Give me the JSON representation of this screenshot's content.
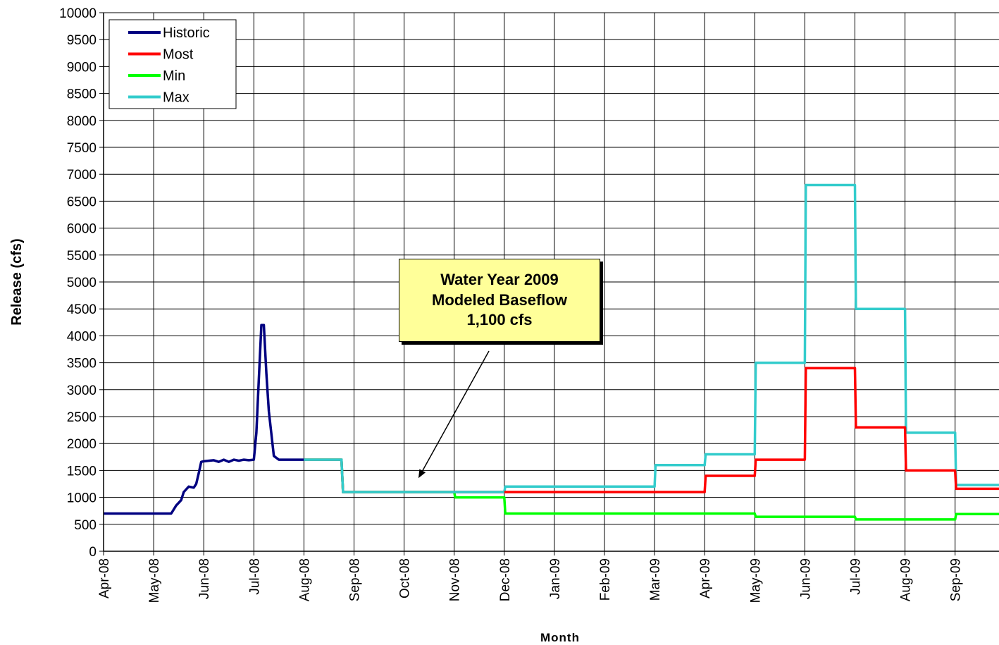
{
  "chart_data": {
    "type": "line",
    "xlabel": "Month",
    "ylabel": "Release (cfs)",
    "ylim": [
      0,
      10000
    ],
    "ytick_step": 500,
    "grid": true,
    "legend_position": "top-left",
    "x_ticks": [
      "Apr-08",
      "May-08",
      "Jun-08",
      "Jul-08",
      "Aug-08",
      "Sep-08",
      "Oct-08",
      "Nov-08",
      "Dec-08",
      "Jan-09",
      "Feb-09",
      "Mar-09",
      "Apr-09",
      "May-09",
      "Jun-09",
      "Jul-09",
      "Aug-09",
      "Sep-09"
    ],
    "x_unit": "month index (0 = Apr-08)",
    "series": [
      {
        "name": "Historic",
        "color": "#000080",
        "x": [
          0,
          1.35,
          1.45,
          1.55,
          1.6,
          1.7,
          1.8,
          1.85,
          1.9,
          1.95,
          2.0,
          2.1,
          2.2,
          2.3,
          2.4,
          2.5,
          2.6,
          2.7,
          2.8,
          2.9,
          3.0,
          3.05,
          3.1,
          3.15,
          3.2,
          3.25,
          3.3,
          3.4,
          3.5,
          3.6,
          3.7,
          3.8,
          4.0
        ],
        "y": [
          700,
          700,
          850,
          950,
          1100,
          1200,
          1180,
          1250,
          1450,
          1660,
          1670,
          1680,
          1690,
          1660,
          1700,
          1660,
          1700,
          1680,
          1700,
          1690,
          1700,
          2200,
          3200,
          4200,
          4200,
          3300,
          2600,
          1770,
          1700,
          1700,
          1700,
          1700,
          1700
        ]
      },
      {
        "name": "Most",
        "color": "#ff0000",
        "x": [
          4.0,
          4.75,
          4.78,
          8.0,
          8.02,
          12.0,
          12.02,
          13.0,
          13.02,
          14.0,
          14.02,
          15.0,
          15.02,
          16.0,
          16.02,
          17.0,
          17.02,
          18.0
        ],
        "y": [
          1700,
          1700,
          1100,
          1100,
          1100,
          1100,
          1400,
          1400,
          1700,
          1700,
          3400,
          3400,
          2300,
          2300,
          1500,
          1500,
          1160,
          1160
        ]
      },
      {
        "name": "Min",
        "color": "#00ff00",
        "x": [
          4.0,
          4.75,
          4.78,
          7.0,
          7.02,
          8.0,
          8.02,
          13.0,
          13.02,
          15.0,
          15.02,
          17.0,
          17.02,
          18.0
        ],
        "y": [
          1700,
          1700,
          1100,
          1100,
          1000,
          1000,
          700,
          700,
          640,
          640,
          590,
          590,
          690,
          690
        ]
      },
      {
        "name": "Max",
        "color": "#33cccc",
        "x": [
          4.0,
          4.75,
          4.78,
          8.0,
          8.02,
          11.0,
          11.02,
          12.0,
          12.02,
          13.0,
          13.02,
          14.0,
          14.02,
          15.0,
          15.02,
          16.0,
          16.02,
          17.0,
          17.02,
          18.0
        ],
        "y": [
          1700,
          1700,
          1100,
          1100,
          1200,
          1200,
          1600,
          1600,
          1800,
          1800,
          3500,
          3500,
          6800,
          6800,
          4500,
          4500,
          2200,
          2200,
          1230,
          1230
        ]
      }
    ],
    "annotation": {
      "lines": [
        "Water Year 2009",
        "Modeled Baseflow",
        "1,100 cfs"
      ],
      "arrow_to": {
        "x": 6.3,
        "y": 1250
      }
    }
  }
}
